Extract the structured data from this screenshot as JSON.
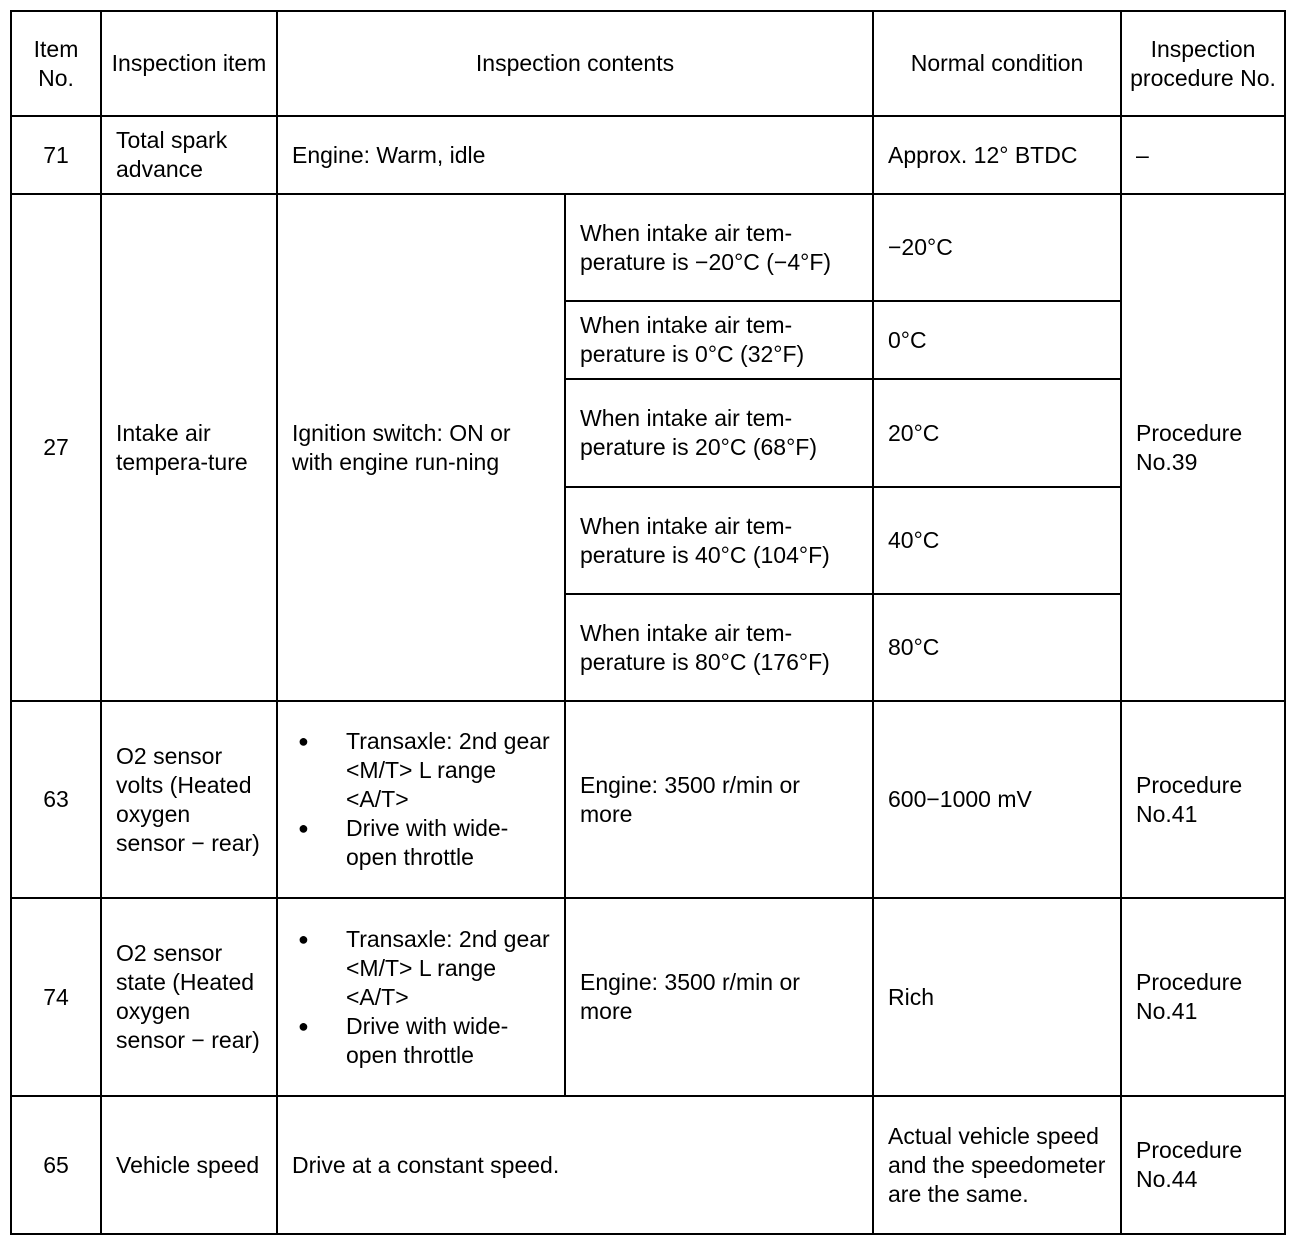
{
  "headers": [
    "Item No.",
    "Inspection item",
    "Inspection contents",
    "Normal condition",
    "Inspection procedure No."
  ],
  "rows": {
    "r71": {
      "no": "71",
      "item": "Total spark advance",
      "contents": "Engine: Warm, idle",
      "normal": "Approx. 12° BTDC",
      "procedure": "–"
    },
    "r27": {
      "no": "27",
      "item": "Intake air tempera-ture",
      "contents": "Ignition switch: ON or with engine run-ning",
      "procedure": "Procedure No.39",
      "sub": [
        {
          "condition": "When intake air tem-perature is −20°C (−4°F)",
          "normal": "−20°C"
        },
        {
          "condition": "When intake air tem-perature is 0°C (32°F)",
          "normal": "0°C"
        },
        {
          "condition": "When intake air tem-perature is 20°C (68°F)",
          "normal": "20°C"
        },
        {
          "condition": "When intake air tem-perature is 40°C (104°F)",
          "normal": "40°C"
        },
        {
          "condition": "When intake air tem-perature is 80°C (176°F)",
          "normal": "80°C"
        }
      ]
    },
    "r63": {
      "no": "63",
      "item": "O2 sensor volts (Heated oxygen sensor − rear)",
      "bullet1": "Transaxle: 2nd gear <M/T> L range <A/T>",
      "bullet2": "Drive with wide-open throttle",
      "condition": "Engine: 3500 r/min or more",
      "normal": "600−1000 mV",
      "procedure": "Procedure No.41"
    },
    "r74": {
      "no": "74",
      "item": "O2 sensor state (Heated oxygen sensor − rear)",
      "bullet1": "Transaxle: 2nd gear <M/T> L range <A/T>",
      "bullet2": "Drive with wide-open throttle",
      "condition": "Engine: 3500 r/min or more",
      "normal": "Rich",
      "procedure": "Procedure No.41"
    },
    "r65": {
      "no": "65",
      "item": "Vehicle speed",
      "contents": "Drive at a constant speed.",
      "normal": "Actual vehicle speed and the speedometer are the same.",
      "procedure": "Procedure No.44"
    }
  }
}
